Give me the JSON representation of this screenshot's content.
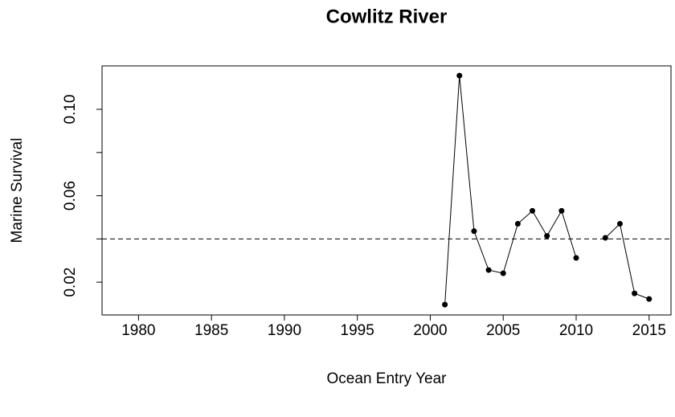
{
  "chart_data": {
    "type": "line",
    "title": "Cowlitz River",
    "xlabel": "Ocean Entry Year",
    "ylabel": "Marine Survival",
    "x": [
      2001,
      2002,
      2003,
      2004,
      2005,
      2006,
      2007,
      2008,
      2009,
      2010,
      2011,
      2012,
      2013,
      2014,
      2015
    ],
    "values": [
      0.0096,
      0.1156,
      0.0436,
      0.0256,
      0.0241,
      0.047,
      0.053,
      0.0414,
      0.053,
      0.0312,
      null,
      0.0405,
      0.047,
      0.0148,
      0.0122
    ],
    "color": "#000000",
    "xlim": [
      1977.5,
      2016.5
    ],
    "xticks": [
      1980,
      1985,
      1990,
      1995,
      2000,
      2005,
      2010,
      2015
    ],
    "ylim": [
      0.0048,
      0.1201
    ],
    "yticks": [
      0.02,
      0.06,
      {
        "value": 0.1,
        "label": "0.10"
      }
    ],
    "yminorticks": [
      0.04,
      0.08
    ],
    "hline": 0.04
  }
}
